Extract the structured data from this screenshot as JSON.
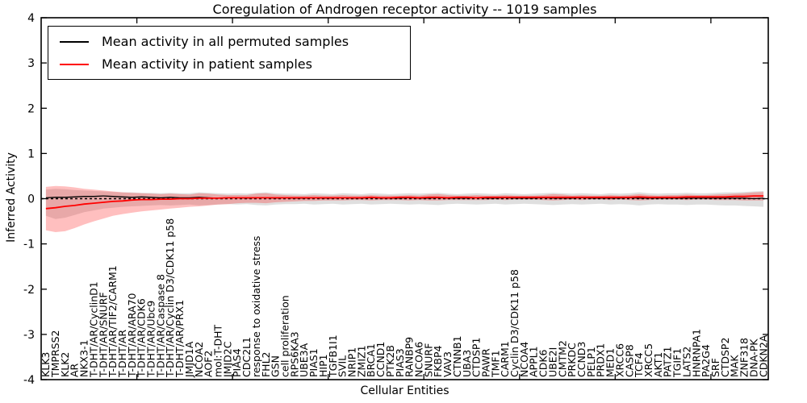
{
  "title": "Coregulation of Androgen receptor activity -- 1019 samples",
  "xlabel": "Cellular Entities",
  "ylabel": "Inferred Activity",
  "legend": [
    {
      "label": "Mean activity in all permuted samples",
      "color": "#000000"
    },
    {
      "label": "Mean activity in patient samples",
      "color": "#ff0000"
    }
  ],
  "colors": {
    "frame": "#000000",
    "background": "#ffffff",
    "permuted_line": "#000000",
    "patient_line": "#ff0000",
    "permuted_band": "#808080",
    "patient_band": "#ff2a2a",
    "zero_line": "#000000"
  },
  "chart_data": {
    "type": "line",
    "title": "Coregulation of Androgen receptor activity -- 1019 samples",
    "xlabel": "Cellular Entities",
    "ylabel": "Inferred Activity",
    "ylim": [
      -4,
      4
    ],
    "yticks": [
      -4,
      -3,
      -2,
      -1,
      0,
      1,
      2,
      3,
      4
    ],
    "xtick_interval": 10,
    "grid": false,
    "legend_position": "upper left",
    "zero_line": {
      "y": 0,
      "style": "dashed",
      "color": "#000000"
    },
    "categories": [
      "KLK3",
      "TMPRSS2",
      "KLK2",
      "AR",
      "NKX3-1",
      "T-DHT/AR/CyclinD1",
      "T-DHT/AR/SNURF",
      "T-DHT/AR/TIF2/CARM1",
      "T-DHT/AR",
      "T-DHT/AR/ARA70",
      "T-DHT/AR/CDK6",
      "T-DHT/AR/Ubc9",
      "T-DHT/AR/Caspase 8",
      "T-DHT/AR/Cyclin D3/CDK11 p58",
      "T-DHT/AR/PRX1",
      "JMJD1A",
      "NCOA2",
      "AOF2",
      "mol:T-DHT",
      "JMJD2C",
      "PIAS4",
      "CDC2L1",
      "response to oxidative stress",
      "FHL2",
      "GSN",
      "cell proliferation",
      "RPS6KA3",
      "UBE3A",
      "PIAS1",
      "HIP1",
      "TGFB1I1",
      "SVIL",
      "NRIP1",
      "ZMIZ1",
      "BRCA1",
      "CCND1",
      "PTK2B",
      "PIAS3",
      "RANBP9",
      "NCOA6",
      "SNURF",
      "FKBP4",
      "VAV3",
      "CTNNB1",
      "UBA3",
      "CTDSP1",
      "PAWR",
      "TMF1",
      "CARM1",
      "Cyclin D3/CDK11 p58",
      "NCOA4",
      "APPL1",
      "CDK6",
      "UBE2I",
      "CMTM2",
      "PRKDC",
      "CCND3",
      "PELP1",
      "PRDX1",
      "MED1",
      "XRCC6",
      "CASP8",
      "TCF4",
      "XRCC5",
      "AKT1",
      "PATZ1",
      "TGIF1",
      "LATS2",
      "HNRNPA1",
      "PA2G4",
      "SRF",
      "CTDSP2",
      "MAK",
      "ZNF318",
      "DNA-PK",
      "CDKN2A"
    ],
    "series": [
      {
        "name": "Mean activity in all permuted samples",
        "color": "#000000",
        "style": "solid",
        "values": [
          0.02,
          0.03,
          0.03,
          0.04,
          0.05,
          0.05,
          0.06,
          0.05,
          0.04,
          0.03,
          0.04,
          0.03,
          0.02,
          0.03,
          0.02,
          0.02,
          0.03,
          0.02,
          0.01,
          0.02,
          0.02,
          0.01,
          0.02,
          0.02,
          0.01,
          0.02,
          0.01,
          0.01,
          0.02,
          0.01,
          0.01,
          0.02,
          0.01,
          0.01,
          0.02,
          0.01,
          0.01,
          0.01,
          0.02,
          0.01,
          0.01,
          0.02,
          0.01,
          0.01,
          0.01,
          0.02,
          0.01,
          0.01,
          0.02,
          0.01,
          0.01,
          0.01,
          0.02,
          0.01,
          0.01,
          0.01,
          0.02,
          0.01,
          0.01,
          0.01,
          0.01,
          0.02,
          0.01,
          0.01,
          0.01,
          0.01,
          0.01,
          0.01,
          0.01,
          0.01,
          0.01,
          0.01,
          0.01,
          0.01,
          0.0,
          0.01
        ]
      },
      {
        "name": "Mean activity in patient samples",
        "color": "#ff0000",
        "style": "solid",
        "values": [
          -0.22,
          -0.2,
          -0.17,
          -0.15,
          -0.12,
          -0.1,
          -0.08,
          -0.06,
          -0.05,
          -0.03,
          -0.02,
          -0.02,
          -0.01,
          -0.01,
          0.0,
          0.0,
          0.01,
          0.01,
          0.01,
          0.02,
          0.02,
          0.02,
          0.02,
          0.02,
          0.02,
          0.02,
          0.02,
          0.02,
          0.02,
          0.02,
          0.02,
          0.02,
          0.02,
          0.02,
          0.03,
          0.02,
          0.02,
          0.03,
          0.03,
          0.02,
          0.03,
          0.03,
          0.02,
          0.03,
          0.03,
          0.02,
          0.03,
          0.03,
          0.03,
          0.03,
          0.03,
          0.03,
          0.03,
          0.03,
          0.03,
          0.03,
          0.03,
          0.03,
          0.03,
          0.03,
          0.03,
          0.03,
          0.04,
          0.03,
          0.03,
          0.03,
          0.03,
          0.04,
          0.04,
          0.04,
          0.04,
          0.04,
          0.05,
          0.05,
          0.06,
          0.06
        ]
      }
    ],
    "bands": [
      {
        "name": "std band of permuted samples",
        "color": "#808080",
        "opacity": 0.25,
        "upper": [
          0.2,
          0.22,
          0.21,
          0.19,
          0.18,
          0.17,
          0.16,
          0.15,
          0.14,
          0.14,
          0.13,
          0.13,
          0.12,
          0.13,
          0.12,
          0.12,
          0.14,
          0.13,
          0.12,
          0.11,
          0.12,
          0.11,
          0.13,
          0.14,
          0.12,
          0.11,
          0.11,
          0.1,
          0.12,
          0.11,
          0.1,
          0.12,
          0.11,
          0.1,
          0.12,
          0.11,
          0.1,
          0.11,
          0.12,
          0.11,
          0.12,
          0.13,
          0.11,
          0.1,
          0.11,
          0.12,
          0.11,
          0.1,
          0.12,
          0.11,
          0.1,
          0.11,
          0.12,
          0.13,
          0.12,
          0.11,
          0.12,
          0.11,
          0.1,
          0.12,
          0.11,
          0.12,
          0.14,
          0.12,
          0.11,
          0.12,
          0.12,
          0.13,
          0.12,
          0.12,
          0.13,
          0.14,
          0.14,
          0.15,
          0.16,
          0.17
        ],
        "lower": [
          -0.38,
          -0.45,
          -0.42,
          -0.36,
          -0.3,
          -0.26,
          -0.22,
          -0.2,
          -0.18,
          -0.17,
          -0.16,
          -0.15,
          -0.14,
          -0.15,
          -0.14,
          -0.13,
          -0.15,
          -0.14,
          -0.13,
          -0.12,
          -0.13,
          -0.12,
          -0.14,
          -0.15,
          -0.13,
          -0.12,
          -0.12,
          -0.11,
          -0.13,
          -0.12,
          -0.11,
          -0.13,
          -0.12,
          -0.11,
          -0.13,
          -0.12,
          -0.11,
          -0.12,
          -0.13,
          -0.12,
          -0.13,
          -0.14,
          -0.12,
          -0.11,
          -0.12,
          -0.13,
          -0.12,
          -0.11,
          -0.13,
          -0.12,
          -0.11,
          -0.12,
          -0.13,
          -0.14,
          -0.13,
          -0.12,
          -0.13,
          -0.12,
          -0.11,
          -0.13,
          -0.12,
          -0.13,
          -0.15,
          -0.13,
          -0.12,
          -0.13,
          -0.13,
          -0.14,
          -0.13,
          -0.13,
          -0.14,
          -0.15,
          -0.15,
          -0.16,
          -0.17,
          -0.18
        ]
      },
      {
        "name": "std band of patient samples",
        "color": "#ff2a2a",
        "opacity": 0.3,
        "upper": [
          0.26,
          0.28,
          0.27,
          0.25,
          0.22,
          0.2,
          0.18,
          0.16,
          0.14,
          0.13,
          0.12,
          0.11,
          0.1,
          0.11,
          0.1,
          0.09,
          0.12,
          0.11,
          0.09,
          0.08,
          0.08,
          0.08,
          0.11,
          0.12,
          0.09,
          0.08,
          0.07,
          0.07,
          0.08,
          0.07,
          0.07,
          0.08,
          0.07,
          0.07,
          0.08,
          0.07,
          0.07,
          0.07,
          0.08,
          0.07,
          0.09,
          0.1,
          0.08,
          0.07,
          0.07,
          0.08,
          0.07,
          0.07,
          0.08,
          0.07,
          0.07,
          0.07,
          0.08,
          0.1,
          0.09,
          0.07,
          0.08,
          0.07,
          0.07,
          0.08,
          0.07,
          0.08,
          0.1,
          0.08,
          0.07,
          0.08,
          0.08,
          0.09,
          0.08,
          0.08,
          0.09,
          0.1,
          0.11,
          0.12,
          0.14,
          0.15
        ],
        "lower": [
          -0.7,
          -0.74,
          -0.72,
          -0.65,
          -0.57,
          -0.5,
          -0.44,
          -0.38,
          -0.34,
          -0.31,
          -0.28,
          -0.26,
          -0.24,
          -0.22,
          -0.2,
          -0.18,
          -0.17,
          -0.15,
          -0.13,
          -0.12,
          -0.1,
          -0.09,
          -0.09,
          -0.1,
          -0.08,
          -0.07,
          -0.06,
          -0.05,
          -0.05,
          -0.04,
          -0.04,
          -0.04,
          -0.03,
          -0.03,
          -0.04,
          -0.03,
          -0.03,
          -0.03,
          -0.04,
          -0.03,
          -0.04,
          -0.04,
          -0.03,
          -0.03,
          -0.03,
          -0.03,
          -0.03,
          -0.02,
          -0.03,
          -0.02,
          -0.02,
          -0.02,
          -0.03,
          -0.04,
          -0.03,
          -0.02,
          -0.03,
          -0.02,
          -0.02,
          -0.03,
          -0.02,
          -0.03,
          -0.04,
          -0.03,
          -0.02,
          -0.02,
          -0.02,
          -0.03,
          -0.02,
          -0.02,
          -0.03,
          -0.03,
          -0.03,
          -0.04,
          -0.04,
          -0.04
        ]
      }
    ]
  }
}
